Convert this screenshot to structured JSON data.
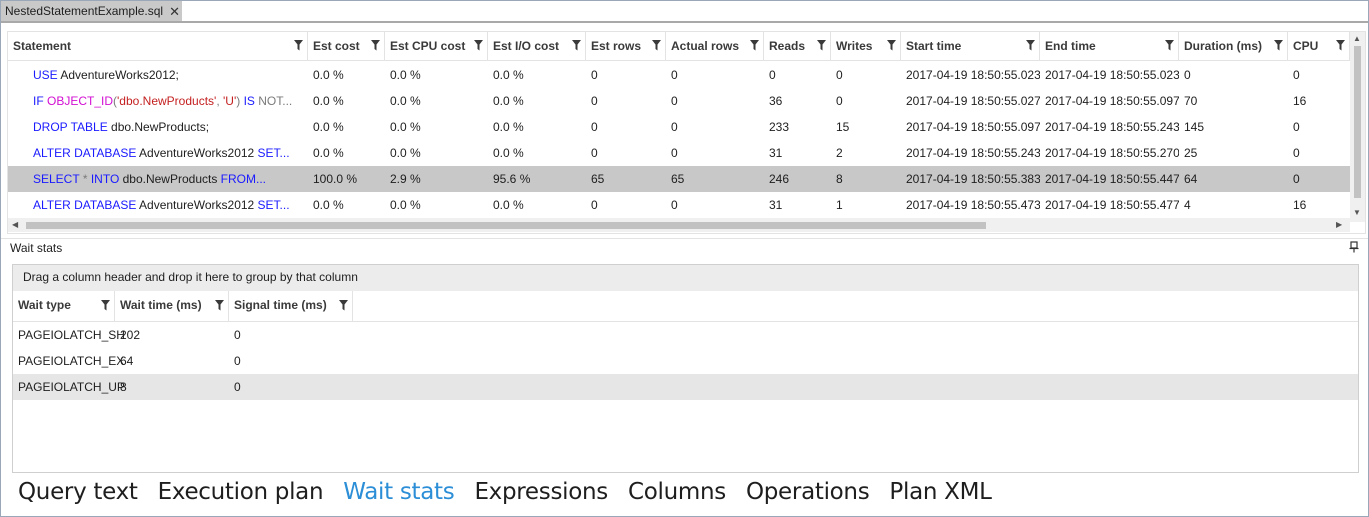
{
  "document_tab": {
    "title": "NestedStatementExample.sql",
    "close_glyph": "✕"
  },
  "statements_grid": {
    "columns": [
      "Statement",
      "Est cost",
      "Est CPU cost",
      "Est I/O cost",
      "Est rows",
      "Actual rows",
      "Reads",
      "Writes",
      "Start time",
      "End time",
      "Duration (ms)",
      "CPU"
    ],
    "rows": [
      {
        "statement": [
          {
            "t": "USE ",
            "c": "kw"
          },
          {
            "t": "AdventureWorks2012;",
            "c": ""
          }
        ],
        "cells": [
          "0.0 %",
          "0.0 %",
          "0.0 %",
          "0",
          "0",
          "0",
          "0",
          "2017-04-19 18:50:55.023",
          "2017-04-19 18:50:55.023",
          "0",
          "0"
        ]
      },
      {
        "statement": [
          {
            "t": "IF ",
            "c": "kw"
          },
          {
            "t": "OBJECT_ID",
            "c": "fn"
          },
          {
            "t": "(",
            "c": "op"
          },
          {
            "t": "'dbo.NewProducts'",
            "c": "str"
          },
          {
            "t": ", ",
            "c": "op"
          },
          {
            "t": "'U'",
            "c": "str"
          },
          {
            "t": ") ",
            "c": "op"
          },
          {
            "t": "IS ",
            "c": "kw"
          },
          {
            "t": "NOT...",
            "c": "op"
          }
        ],
        "cells": [
          "0.0 %",
          "0.0 %",
          "0.0 %",
          "0",
          "0",
          "36",
          "0",
          "2017-04-19 18:50:55.027",
          "2017-04-19 18:50:55.097",
          "70",
          "16"
        ]
      },
      {
        "statement": [
          {
            "t": "DROP TABLE ",
            "c": "kw"
          },
          {
            "t": "dbo.NewProducts;",
            "c": ""
          }
        ],
        "cells": [
          "0.0 %",
          "0.0 %",
          "0.0 %",
          "0",
          "0",
          "233",
          "15",
          "2017-04-19 18:50:55.097",
          "2017-04-19 18:50:55.243",
          "145",
          "0"
        ]
      },
      {
        "statement": [
          {
            "t": "ALTER DATABASE ",
            "c": "kw"
          },
          {
            "t": "AdventureWorks2012 ",
            "c": ""
          },
          {
            "t": "SET...",
            "c": "kw"
          }
        ],
        "cells": [
          "0.0 %",
          "0.0 %",
          "0.0 %",
          "0",
          "0",
          "31",
          "2",
          "2017-04-19 18:50:55.243",
          "2017-04-19 18:50:55.270",
          "25",
          "0"
        ]
      },
      {
        "statement": [
          {
            "t": "SELECT ",
            "c": "kw"
          },
          {
            "t": "* ",
            "c": "op"
          },
          {
            "t": "INTO ",
            "c": "kw"
          },
          {
            "t": "dbo.NewProducts ",
            "c": ""
          },
          {
            "t": "FROM...",
            "c": "kw"
          }
        ],
        "cells": [
          "100.0 %",
          "2.9 %",
          "95.6 %",
          "65",
          "65",
          "246",
          "8",
          "2017-04-19 18:50:55.383",
          "2017-04-19 18:50:55.447",
          "64",
          "0"
        ],
        "selected": true
      },
      {
        "statement": [
          {
            "t": "ALTER DATABASE ",
            "c": "kw"
          },
          {
            "t": "AdventureWorks2012 ",
            "c": ""
          },
          {
            "t": "SET...",
            "c": "kw"
          }
        ],
        "cells": [
          "0.0 %",
          "0.0 %",
          "0.0 %",
          "0",
          "0",
          "31",
          "1",
          "2017-04-19 18:50:55.473",
          "2017-04-19 18:50:55.477",
          "4",
          "16"
        ]
      }
    ]
  },
  "wait_stats_panel": {
    "title": "Wait stats",
    "group_hint": "Drag a column header and drop it here to group by that column",
    "columns": [
      "Wait type",
      "Wait time (ms)",
      "Signal time (ms)"
    ],
    "rows": [
      [
        "PAGEIOLATCH_SH",
        "202",
        "0"
      ],
      [
        "PAGEIOLATCH_EX",
        "64",
        "0"
      ],
      [
        "PAGEIOLATCH_UP",
        "8",
        "0"
      ]
    ],
    "selected_row": 2
  },
  "bottom_tabs": {
    "items": [
      "Query text",
      "Execution plan",
      "Wait stats",
      "Expressions",
      "Columns",
      "Operations",
      "Plan XML"
    ],
    "active": "Wait stats"
  },
  "colors": {
    "accent": "#2b8ed6",
    "keyword": "#1a1aff",
    "function": "#d30fd3",
    "string": "#c41f1f",
    "selected_row": "#c8c8c8"
  }
}
